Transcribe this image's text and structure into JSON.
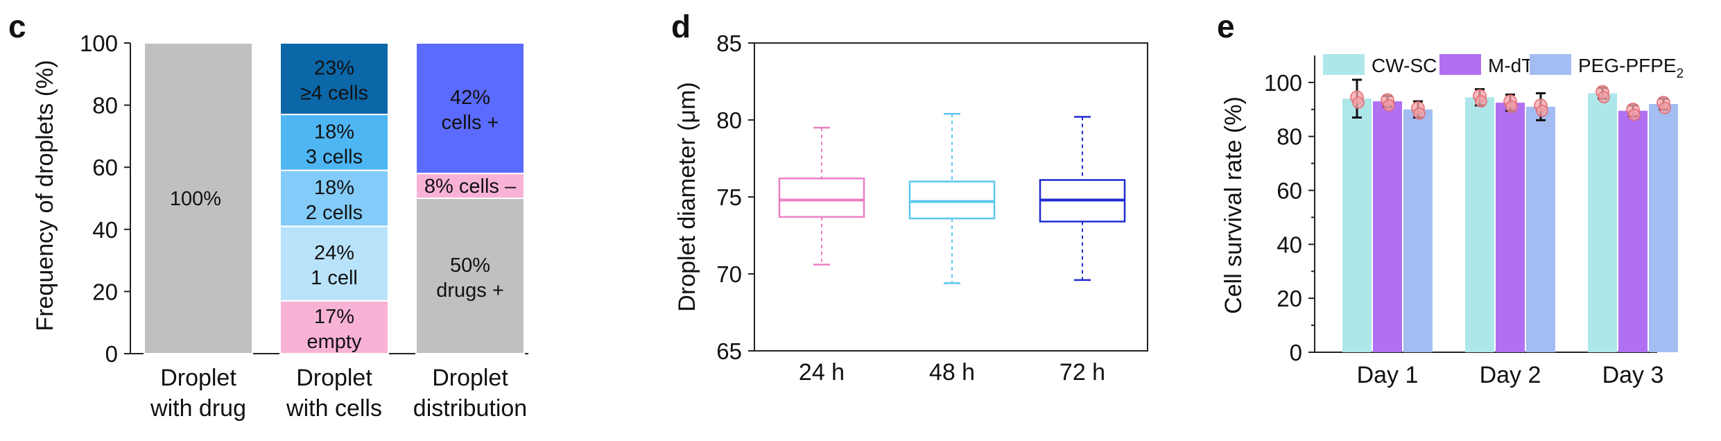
{
  "chart_data": [
    {
      "panel": "c",
      "type": "bar",
      "stacked": true,
      "ylabel": "Frequency of droplets (%)",
      "ylim": [
        0,
        100
      ],
      "yticks": [
        0,
        20,
        40,
        60,
        80,
        100
      ],
      "categories": [
        {
          "line1": "Droplet",
          "line2": "with drug"
        },
        {
          "line1": "Droplet",
          "line2": "with cells"
        },
        {
          "line1": "Droplet",
          "line2": "distribution"
        }
      ],
      "stacks": [
        [
          {
            "value": 100,
            "color": "#c0c0c0",
            "line1": "100%",
            "line2": ""
          }
        ],
        [
          {
            "value": 17,
            "color": "#f8b2d6",
            "line1": "17%",
            "line2": "empty"
          },
          {
            "value": 24,
            "color": "#b9e3fb",
            "line1": "24%",
            "line2": "1 cell"
          },
          {
            "value": 18,
            "color": "#83cbf8",
            "line1": "18%",
            "line2": "2 cells"
          },
          {
            "value": 18,
            "color": "#4fb6f4",
            "line1": "18%",
            "line2": "3 cells"
          },
          {
            "value": 23,
            "color": "#0b67a8",
            "line1": "23%",
            "line2": "≥4 cells"
          }
        ],
        [
          {
            "value": 50,
            "color": "#c0c0c0",
            "line1": "50%",
            "line2": "drugs +"
          },
          {
            "value": 8,
            "color": "#f8b2d6",
            "line1": "8% cells –",
            "line2": ""
          },
          {
            "value": 42,
            "color": "#5b6bff",
            "line1": "42%",
            "line2": "cells +"
          }
        ]
      ]
    },
    {
      "panel": "d",
      "type": "box",
      "ylabel": "Droplet diameter (μm)",
      "ylim": [
        65,
        85
      ],
      "yticks": [
        65,
        70,
        75,
        80,
        85
      ],
      "categories": [
        "24 h",
        "48 h",
        "72 h"
      ],
      "boxes": [
        {
          "min": 70.6,
          "q1": 73.7,
          "median": 74.8,
          "q3": 76.2,
          "max": 79.5,
          "color": "#ec7fc4"
        },
        {
          "min": 69.4,
          "q1": 73.6,
          "median": 74.7,
          "q3": 76.0,
          "max": 80.4,
          "color": "#5bc6f0"
        },
        {
          "min": 69.6,
          "q1": 73.4,
          "median": 74.8,
          "q3": 76.1,
          "max": 80.2,
          "color": "#1f2bd0"
        }
      ]
    },
    {
      "panel": "e",
      "type": "bar",
      "ylabel": "Cell survival rate (%)",
      "ylim": [
        0,
        110
      ],
      "yticks": [
        0,
        20,
        40,
        60,
        80,
        100
      ],
      "categories": [
        "Day 1",
        "Day 2",
        "Day 3"
      ],
      "series": [
        {
          "name": "CW-SC",
          "color": "#aee7ea",
          "values": [
            94,
            94.5,
            96
          ],
          "errors": [
            7,
            3,
            2
          ]
        },
        {
          "name": "M-dTG",
          "color": "#b16ff2",
          "values": [
            93,
            92.5,
            89.5
          ],
          "errors": [
            2,
            3,
            2
          ]
        },
        {
          "name": "PEG-PFPE",
          "sub": "2",
          "color": "#a3bdf2",
          "values": [
            90,
            91,
            92
          ],
          "errors": [
            3,
            5,
            2
          ]
        }
      ]
    }
  ]
}
